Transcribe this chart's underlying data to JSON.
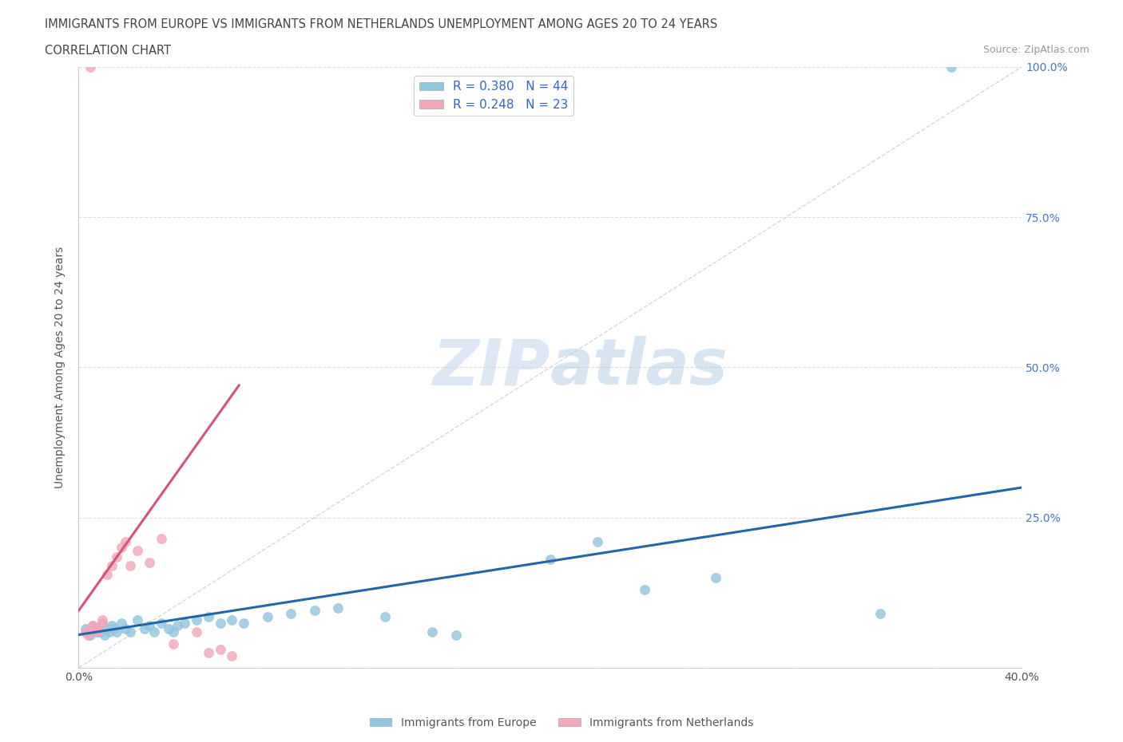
{
  "title_line1": "IMMIGRANTS FROM EUROPE VS IMMIGRANTS FROM NETHERLANDS UNEMPLOYMENT AMONG AGES 20 TO 24 YEARS",
  "title_line2": "CORRELATION CHART",
  "source_text": "Source: ZipAtlas.com",
  "xlabel_label": "Immigrants from Europe",
  "ylabel_label": "Unemployment Among Ages 20 to 24 years",
  "legend2_label": "Immigrants from Netherlands",
  "x_min": 0.0,
  "x_max": 0.4,
  "y_min": 0.0,
  "y_max": 1.0,
  "x_ticks": [
    0.0,
    0.1,
    0.2,
    0.3,
    0.4
  ],
  "x_tick_labels": [
    "0.0%",
    "",
    "",
    "",
    "40.0%"
  ],
  "y_ticks": [
    0.0,
    0.25,
    0.5,
    0.75,
    1.0
  ],
  "y_tick_labels": [
    "",
    "25.0%",
    "50.0%",
    "75.0%",
    "100.0%"
  ],
  "blue_color": "#92c5de",
  "pink_color": "#f4a7b9",
  "blue_line_color": "#2166ac",
  "pink_line_color": "#d6537a",
  "trendline_color": "#cccccc",
  "R_blue": 0.38,
  "N_blue": 44,
  "R_pink": 0.248,
  "N_pink": 23,
  "watermark_zip": "ZIP",
  "watermark_atlas": "atlas",
  "blue_scatter_x": [
    0.003,
    0.004,
    0.005,
    0.006,
    0.007,
    0.008,
    0.009,
    0.01,
    0.011,
    0.012,
    0.013,
    0.014,
    0.015,
    0.016,
    0.018,
    0.02,
    0.022,
    0.025,
    0.028,
    0.03,
    0.032,
    0.035,
    0.038,
    0.04,
    0.042,
    0.045,
    0.05,
    0.055,
    0.06,
    0.065,
    0.07,
    0.08,
    0.09,
    0.1,
    0.11,
    0.13,
    0.15,
    0.16,
    0.2,
    0.22,
    0.24,
    0.27,
    0.34,
    0.37
  ],
  "blue_scatter_y": [
    0.065,
    0.06,
    0.055,
    0.07,
    0.06,
    0.065,
    0.06,
    0.075,
    0.055,
    0.065,
    0.06,
    0.07,
    0.065,
    0.06,
    0.075,
    0.065,
    0.06,
    0.08,
    0.065,
    0.07,
    0.06,
    0.075,
    0.065,
    0.06,
    0.07,
    0.075,
    0.08,
    0.085,
    0.075,
    0.08,
    0.075,
    0.085,
    0.09,
    0.095,
    0.1,
    0.085,
    0.06,
    0.055,
    0.18,
    0.21,
    0.13,
    0.15,
    0.09,
    1.0
  ],
  "pink_scatter_x": [
    0.003,
    0.004,
    0.005,
    0.006,
    0.007,
    0.008,
    0.01,
    0.01,
    0.012,
    0.014,
    0.016,
    0.018,
    0.02,
    0.022,
    0.025,
    0.03,
    0.035,
    0.04,
    0.05,
    0.055,
    0.06,
    0.065,
    0.005
  ],
  "pink_scatter_y": [
    0.06,
    0.055,
    0.065,
    0.07,
    0.065,
    0.06,
    0.075,
    0.08,
    0.155,
    0.17,
    0.185,
    0.2,
    0.21,
    0.17,
    0.195,
    0.175,
    0.215,
    0.04,
    0.06,
    0.025,
    0.03,
    0.02,
    1.0
  ],
  "blue_trend_x0": 0.0,
  "blue_trend_x1": 0.4,
  "blue_trend_y0": 0.055,
  "blue_trend_y1": 0.3,
  "pink_trend_x0": 0.0,
  "pink_trend_x1": 0.068,
  "pink_trend_y0": 0.095,
  "pink_trend_y1": 0.47
}
